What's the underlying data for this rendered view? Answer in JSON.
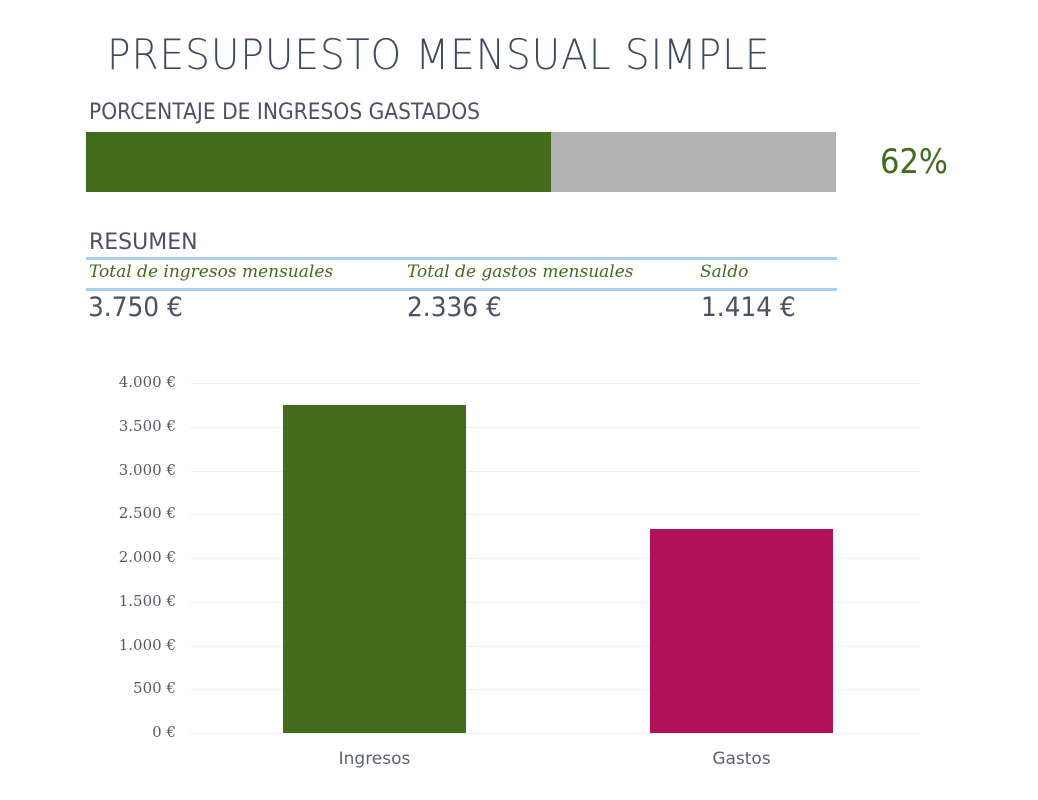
{
  "header": {
    "title": "PRESUPUESTO MENSUAL SIMPLE",
    "subtitle": "PORCENTAJE DE INGRESOS GASTADOS"
  },
  "progress": {
    "percent": 62,
    "label": "62%",
    "fill_color": "#426b1c",
    "track_color": "#b3b3b3"
  },
  "summary": {
    "title": "RESUMEN",
    "columns": [
      {
        "header": "Total de ingresos mensuales",
        "value": "3.750 €"
      },
      {
        "header": "Total de gastos mensuales",
        "value": "2.336 €"
      },
      {
        "header": "Saldo",
        "value": "1.414 €"
      }
    ]
  },
  "chart_data": {
    "type": "bar",
    "title": "",
    "xlabel": "",
    "ylabel": "",
    "categories": [
      "Ingresos",
      "Gastos"
    ],
    "values": [
      3750,
      2336
    ],
    "colors": [
      "#426b1c",
      "#b01159"
    ],
    "ylim": [
      0,
      4000
    ],
    "yticks": [
      0,
      500,
      1000,
      1500,
      2000,
      2500,
      3000,
      3500,
      4000
    ],
    "ytick_labels": [
      "0 €",
      "500 €",
      "1.000 €",
      "1.500 €",
      "2.000 €",
      "2.500 €",
      "3.000 €",
      "3.500 €",
      "4.000 €"
    ],
    "grid": true,
    "legend": "none"
  }
}
